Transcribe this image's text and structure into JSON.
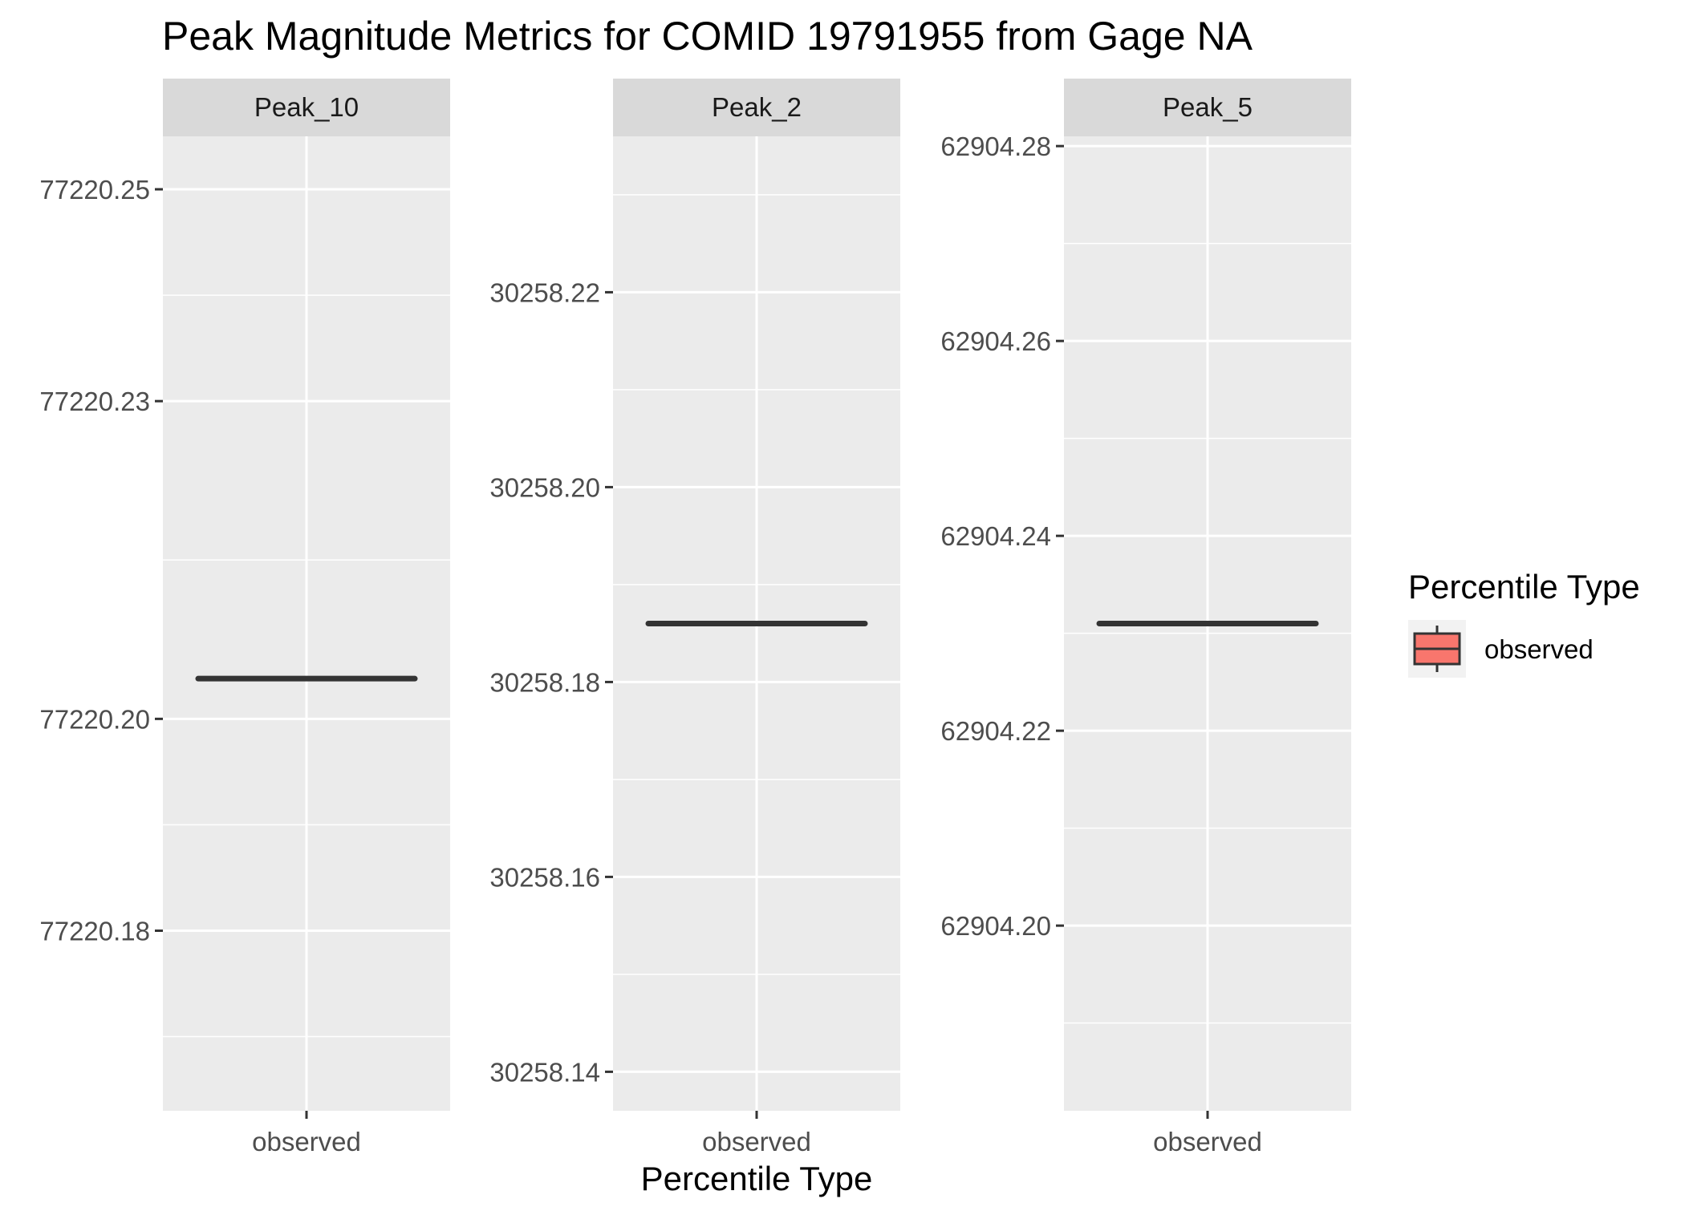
{
  "chart_data": {
    "type": "box",
    "title": "Peak Magnitude Metrics for COMID 19791955 from Gage NA",
    "xlabel": "Percentile Type",
    "ylabel": "",
    "legend": {
      "title": "Percentile Type",
      "placement": "right",
      "items": [
        {
          "label": "observed",
          "color": "#F8766D"
        }
      ]
    },
    "colors": {
      "panel_bg": "#EBEBEB",
      "strip_bg": "#D9D9D9",
      "grid": "#FFFFFF",
      "box_line": "#333333"
    },
    "grid": true,
    "facets": [
      {
        "label": "Peak_10",
        "categories": [
          "observed"
        ],
        "values": [
          77220.2038
        ],
        "ylim": [
          77220.163,
          77220.255
        ],
        "yticks": [
          77220.18,
          77220.2,
          77220.23,
          77220.25
        ],
        "ytick_labels": [
          "77220.18",
          "77220.20",
          "77220.23",
          "77220.25"
        ],
        "minor_yticks": [
          77220.17,
          77220.19,
          77220.215,
          77220.24
        ]
      },
      {
        "label": "Peak_2",
        "categories": [
          "observed"
        ],
        "values": [
          30258.186
        ],
        "ylim": [
          30258.136,
          30258.236
        ],
        "yticks": [
          30258.14,
          30258.16,
          30258.18,
          30258.2,
          30258.22
        ],
        "ytick_labels": [
          "30258.14",
          "30258.16",
          "30258.18",
          "30258.20",
          "30258.22"
        ],
        "minor_yticks": [
          30258.15,
          30258.17,
          30258.19,
          30258.21,
          30258.23
        ]
      },
      {
        "label": "Peak_5",
        "categories": [
          "observed"
        ],
        "values": [
          62904.231
        ],
        "ylim": [
          62904.181,
          62904.281
        ],
        "yticks": [
          62904.2,
          62904.22,
          62904.24,
          62904.26,
          62904.28
        ],
        "ytick_labels": [
          "62904.20",
          "62904.22",
          "62904.24",
          "62904.26",
          "62904.28"
        ],
        "minor_yticks": [
          62904.19,
          62904.21,
          62904.23,
          62904.25,
          62904.27
        ]
      }
    ]
  }
}
